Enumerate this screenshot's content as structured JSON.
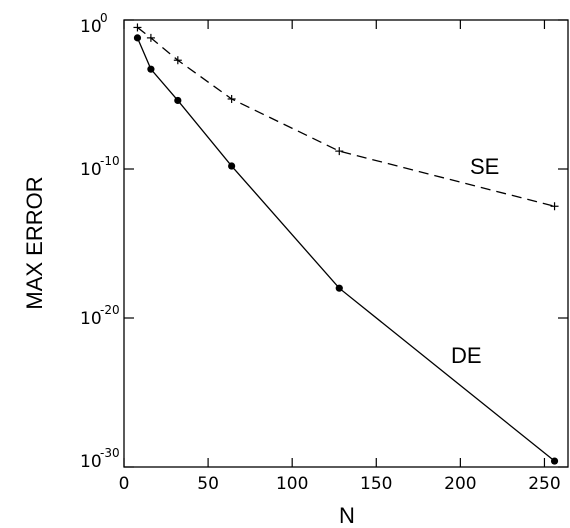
{
  "chart_data": {
    "type": "line",
    "title": "",
    "xlabel": "N",
    "ylabel": "MAX ERROR",
    "xlim": [
      0,
      264
    ],
    "ylim_log10": [
      -30,
      0
    ],
    "yscale": "log",
    "grid": false,
    "x_ticks": [
      0,
      50,
      100,
      150,
      200,
      250
    ],
    "y_ticks": [
      {
        "base": "10",
        "exp": "0",
        "log10": 0
      },
      {
        "base": "10",
        "exp": "-10",
        "log10": -10
      },
      {
        "base": "10",
        "exp": "-20",
        "log10": -20
      },
      {
        "base": "10",
        "exp": "-30",
        "log10": -30
      }
    ],
    "series": [
      {
        "name": "SE",
        "style": "dashed",
        "marker": "plus",
        "x": [
          8,
          16,
          32,
          64,
          128,
          256
        ],
        "y_log10": [
          -0.5,
          -1.2,
          -2.7,
          -5.3,
          -8.8,
          -12.5
        ]
      },
      {
        "name": "DE",
        "style": "solid",
        "marker": "dot",
        "x": [
          8,
          16,
          32,
          64,
          128,
          256
        ],
        "y_log10": [
          -1.2,
          -3.3,
          -5.4,
          -9.8,
          -18.0,
          -29.6
        ]
      }
    ],
    "annotations": [
      {
        "text": "SE",
        "series": "SE"
      },
      {
        "text": "DE",
        "series": "DE"
      }
    ]
  }
}
